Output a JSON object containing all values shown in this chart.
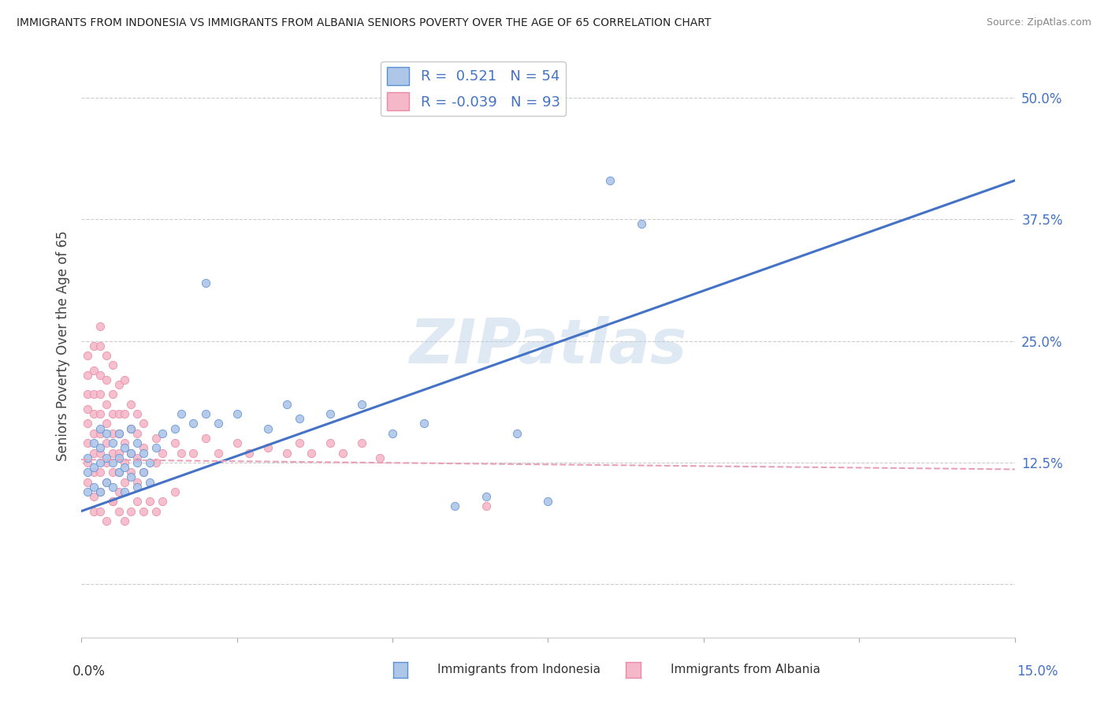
{
  "title": "IMMIGRANTS FROM INDONESIA VS IMMIGRANTS FROM ALBANIA SENIORS POVERTY OVER THE AGE OF 65 CORRELATION CHART",
  "source": "Source: ZipAtlas.com",
  "ylabel": "Seniors Poverty Over the Age of 65",
  "ytick_values": [
    0.0,
    0.125,
    0.25,
    0.375,
    0.5
  ],
  "ytick_labels": [
    "",
    "12.5%",
    "25.0%",
    "37.5%",
    "50.0%"
  ],
  "xlim": [
    0.0,
    0.15
  ],
  "ylim": [
    -0.055,
    0.545
  ],
  "indonesia_R": 0.521,
  "indonesia_N": 54,
  "albania_R": -0.039,
  "albania_N": 93,
  "indonesia_color": "#aec6e8",
  "albania_color": "#f4b8c8",
  "indonesia_edge_color": "#5b8fd4",
  "albania_edge_color": "#e88aa8",
  "indonesia_line_color": "#4472c4",
  "albania_line_color": "#e8a0b8",
  "watermark": "ZIPatlas",
  "legend_label_indonesia": "Immigrants from Indonesia",
  "legend_label_albania": "Immigrants from Albania",
  "indonesia_line": [
    [
      0.0,
      0.075
    ],
    [
      0.15,
      0.415
    ]
  ],
  "albania_line": [
    [
      0.0,
      0.128
    ],
    [
      0.15,
      0.118
    ]
  ],
  "indonesia_scatter": [
    [
      0.001,
      0.095
    ],
    [
      0.001,
      0.115
    ],
    [
      0.001,
      0.13
    ],
    [
      0.002,
      0.1
    ],
    [
      0.002,
      0.12
    ],
    [
      0.002,
      0.145
    ],
    [
      0.003,
      0.095
    ],
    [
      0.003,
      0.125
    ],
    [
      0.003,
      0.14
    ],
    [
      0.003,
      0.16
    ],
    [
      0.004,
      0.105
    ],
    [
      0.004,
      0.13
    ],
    [
      0.004,
      0.155
    ],
    [
      0.005,
      0.1
    ],
    [
      0.005,
      0.125
    ],
    [
      0.005,
      0.145
    ],
    [
      0.006,
      0.115
    ],
    [
      0.006,
      0.13
    ],
    [
      0.006,
      0.155
    ],
    [
      0.007,
      0.095
    ],
    [
      0.007,
      0.12
    ],
    [
      0.007,
      0.14
    ],
    [
      0.008,
      0.11
    ],
    [
      0.008,
      0.135
    ],
    [
      0.008,
      0.16
    ],
    [
      0.009,
      0.1
    ],
    [
      0.009,
      0.125
    ],
    [
      0.009,
      0.145
    ],
    [
      0.01,
      0.115
    ],
    [
      0.01,
      0.135
    ],
    [
      0.011,
      0.105
    ],
    [
      0.011,
      0.125
    ],
    [
      0.012,
      0.14
    ],
    [
      0.013,
      0.155
    ],
    [
      0.015,
      0.16
    ],
    [
      0.016,
      0.175
    ],
    [
      0.018,
      0.165
    ],
    [
      0.02,
      0.175
    ],
    [
      0.022,
      0.165
    ],
    [
      0.025,
      0.175
    ],
    [
      0.03,
      0.16
    ],
    [
      0.033,
      0.185
    ],
    [
      0.035,
      0.17
    ],
    [
      0.04,
      0.175
    ],
    [
      0.045,
      0.185
    ],
    [
      0.05,
      0.155
    ],
    [
      0.055,
      0.165
    ],
    [
      0.06,
      0.08
    ],
    [
      0.065,
      0.09
    ],
    [
      0.07,
      0.155
    ],
    [
      0.02,
      0.31
    ],
    [
      0.085,
      0.415
    ],
    [
      0.09,
      0.37
    ],
    [
      0.075,
      0.085
    ]
  ],
  "albania_scatter": [
    [
      0.001,
      0.105
    ],
    [
      0.001,
      0.125
    ],
    [
      0.001,
      0.145
    ],
    [
      0.001,
      0.165
    ],
    [
      0.001,
      0.18
    ],
    [
      0.001,
      0.195
    ],
    [
      0.001,
      0.215
    ],
    [
      0.001,
      0.235
    ],
    [
      0.002,
      0.09
    ],
    [
      0.002,
      0.115
    ],
    [
      0.002,
      0.135
    ],
    [
      0.002,
      0.155
    ],
    [
      0.002,
      0.175
    ],
    [
      0.002,
      0.195
    ],
    [
      0.002,
      0.22
    ],
    [
      0.002,
      0.245
    ],
    [
      0.003,
      0.095
    ],
    [
      0.003,
      0.115
    ],
    [
      0.003,
      0.135
    ],
    [
      0.003,
      0.155
    ],
    [
      0.003,
      0.175
    ],
    [
      0.003,
      0.195
    ],
    [
      0.003,
      0.215
    ],
    [
      0.003,
      0.245
    ],
    [
      0.003,
      0.265
    ],
    [
      0.004,
      0.105
    ],
    [
      0.004,
      0.125
    ],
    [
      0.004,
      0.145
    ],
    [
      0.004,
      0.165
    ],
    [
      0.004,
      0.185
    ],
    [
      0.004,
      0.21
    ],
    [
      0.004,
      0.235
    ],
    [
      0.005,
      0.085
    ],
    [
      0.005,
      0.115
    ],
    [
      0.005,
      0.135
    ],
    [
      0.005,
      0.155
    ],
    [
      0.005,
      0.175
    ],
    [
      0.005,
      0.195
    ],
    [
      0.005,
      0.225
    ],
    [
      0.006,
      0.095
    ],
    [
      0.006,
      0.115
    ],
    [
      0.006,
      0.135
    ],
    [
      0.006,
      0.155
    ],
    [
      0.006,
      0.175
    ],
    [
      0.006,
      0.205
    ],
    [
      0.007,
      0.105
    ],
    [
      0.007,
      0.125
    ],
    [
      0.007,
      0.145
    ],
    [
      0.007,
      0.175
    ],
    [
      0.007,
      0.21
    ],
    [
      0.008,
      0.115
    ],
    [
      0.008,
      0.135
    ],
    [
      0.008,
      0.16
    ],
    [
      0.008,
      0.185
    ],
    [
      0.009,
      0.105
    ],
    [
      0.009,
      0.13
    ],
    [
      0.009,
      0.155
    ],
    [
      0.009,
      0.175
    ],
    [
      0.01,
      0.115
    ],
    [
      0.01,
      0.14
    ],
    [
      0.01,
      0.165
    ],
    [
      0.012,
      0.125
    ],
    [
      0.012,
      0.15
    ],
    [
      0.013,
      0.135
    ],
    [
      0.015,
      0.145
    ],
    [
      0.016,
      0.135
    ],
    [
      0.018,
      0.135
    ],
    [
      0.02,
      0.15
    ],
    [
      0.022,
      0.135
    ],
    [
      0.025,
      0.145
    ],
    [
      0.027,
      0.135
    ],
    [
      0.03,
      0.14
    ],
    [
      0.033,
      0.135
    ],
    [
      0.035,
      0.145
    ],
    [
      0.037,
      0.135
    ],
    [
      0.04,
      0.145
    ],
    [
      0.042,
      0.135
    ],
    [
      0.045,
      0.145
    ],
    [
      0.048,
      0.13
    ],
    [
      0.002,
      0.075
    ],
    [
      0.003,
      0.075
    ],
    [
      0.004,
      0.065
    ],
    [
      0.005,
      0.085
    ],
    [
      0.006,
      0.075
    ],
    [
      0.007,
      0.065
    ],
    [
      0.008,
      0.075
    ],
    [
      0.009,
      0.085
    ],
    [
      0.01,
      0.075
    ],
    [
      0.011,
      0.085
    ],
    [
      0.012,
      0.075
    ],
    [
      0.013,
      0.085
    ],
    [
      0.015,
      0.095
    ],
    [
      0.065,
      0.08
    ]
  ]
}
